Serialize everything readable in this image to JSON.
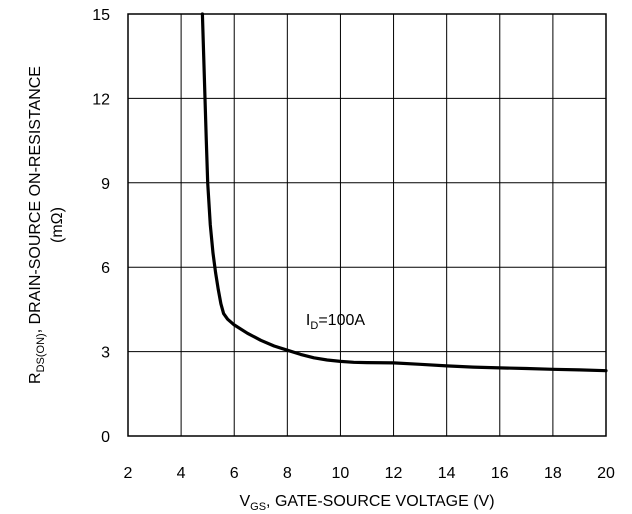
{
  "chart_data": {
    "type": "line",
    "xlabel": {
      "main": "V",
      "sub": "GS",
      "rest": ", GATE-SOURCE VOLTAGE (V)"
    },
    "ylabel": {
      "main": "R",
      "sub": "DS(ON)",
      "rest": ", DRAIN-SOURCE ON-RESISTANCE",
      "line2": "(mΩ)"
    },
    "xlim": [
      2,
      20
    ],
    "ylim": [
      0,
      15
    ],
    "xticks": [
      2,
      4,
      6,
      8,
      10,
      12,
      14,
      16,
      18,
      20
    ],
    "yticks": [
      0,
      3,
      6,
      9,
      12,
      15
    ],
    "grid": true,
    "annotation": {
      "main": "I",
      "sub": "D",
      "rest": "=100A",
      "x": 8.7,
      "y": 3.95
    },
    "series": [
      {
        "color": "#000000",
        "x": [
          4.8,
          4.85,
          4.9,
          4.95,
          5.0,
          5.1,
          5.2,
          5.3,
          5.4,
          5.5,
          5.6,
          5.75,
          6.0,
          6.5,
          7.0,
          7.5,
          8.0,
          8.5,
          9.0,
          9.5,
          10.0,
          10.5,
          11.0,
          12.0,
          13.0,
          14.0,
          15.0,
          16.0,
          17.0,
          18.0,
          19.0,
          20.0
        ],
        "y": [
          15.0,
          13.5,
          12.0,
          10.5,
          9.0,
          7.5,
          6.5,
          5.8,
          5.2,
          4.7,
          4.35,
          4.15,
          3.95,
          3.65,
          3.4,
          3.2,
          3.05,
          2.9,
          2.78,
          2.7,
          2.65,
          2.62,
          2.61,
          2.6,
          2.55,
          2.49,
          2.45,
          2.42,
          2.4,
          2.37,
          2.35,
          2.32
        ]
      }
    ]
  }
}
